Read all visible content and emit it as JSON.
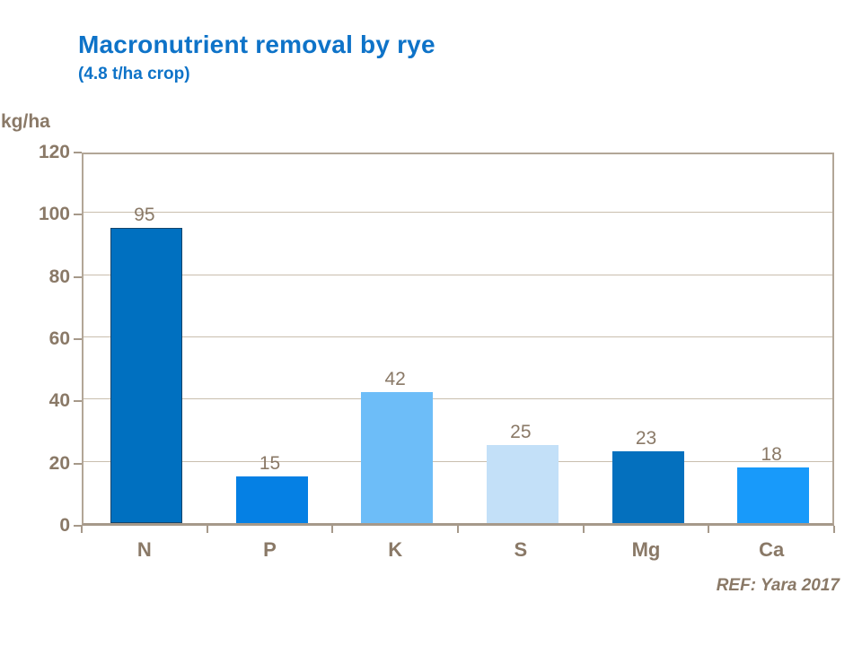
{
  "slide": {
    "title": "Macronutrient removal by rye",
    "subtitle": "(4.8 t/ha crop)",
    "unit_label": "kg/ha",
    "ref_label": "REF: Yara 2017"
  },
  "colors": {
    "title_blue": "#0E73C8",
    "text_brown": "#8A7967",
    "grid_line": "#C9BEAE",
    "plot_border": "#B2A697",
    "axis_line": "#A6998A"
  },
  "chart_data": {
    "type": "bar",
    "categories": [
      "N",
      "P",
      "K",
      "S",
      "Mg",
      "Ca"
    ],
    "values": [
      95,
      15,
      42,
      25,
      23,
      18
    ],
    "bar_colors": [
      "#0070C0",
      "#0580E4",
      "#6DBDF8",
      "#C3E0F8",
      "#0470BE",
      "#189AFA"
    ],
    "bar_border_colors": [
      "#14456B",
      "",
      "",
      "",
      "",
      ""
    ],
    "title": "Macronutrient removal by rye",
    "subtitle": "(4.8 t/ha crop)",
    "xlabel": "",
    "ylabel": "kg/ha",
    "ylim": [
      0,
      120
    ],
    "ytick_step": 20,
    "grid": true,
    "legend": false,
    "annotation": "REF: Yara 2017"
  }
}
